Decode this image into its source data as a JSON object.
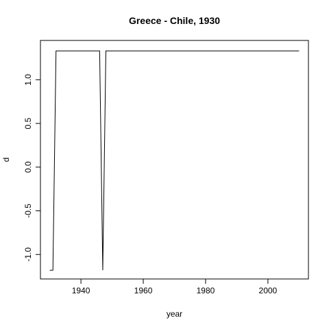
{
  "chart_data": {
    "type": "line",
    "title": "Greece - Chile, 1930",
    "xlabel": "year",
    "ylabel": "d",
    "xlim": [
      1927,
      2013
    ],
    "ylim": [
      -1.28,
      1.45
    ],
    "x_ticks": [
      1940,
      1960,
      1980,
      2000
    ],
    "y_ticks": [
      -1.0,
      -0.5,
      0.0,
      0.5,
      1.0
    ],
    "x_tick_labels": [
      "1940",
      "1960",
      "1980",
      "2000"
    ],
    "y_tick_labels": [
      "-1.0",
      "-0.5",
      "0.0",
      "0.5",
      "1.0"
    ],
    "grid": false,
    "series": [
      {
        "x": [
          1930,
          1931,
          1932,
          1946,
          1947,
          1948,
          2010
        ],
        "y": [
          -1.18,
          -1.18,
          1.33,
          1.33,
          -1.18,
          1.33,
          1.33
        ]
      }
    ]
  }
}
